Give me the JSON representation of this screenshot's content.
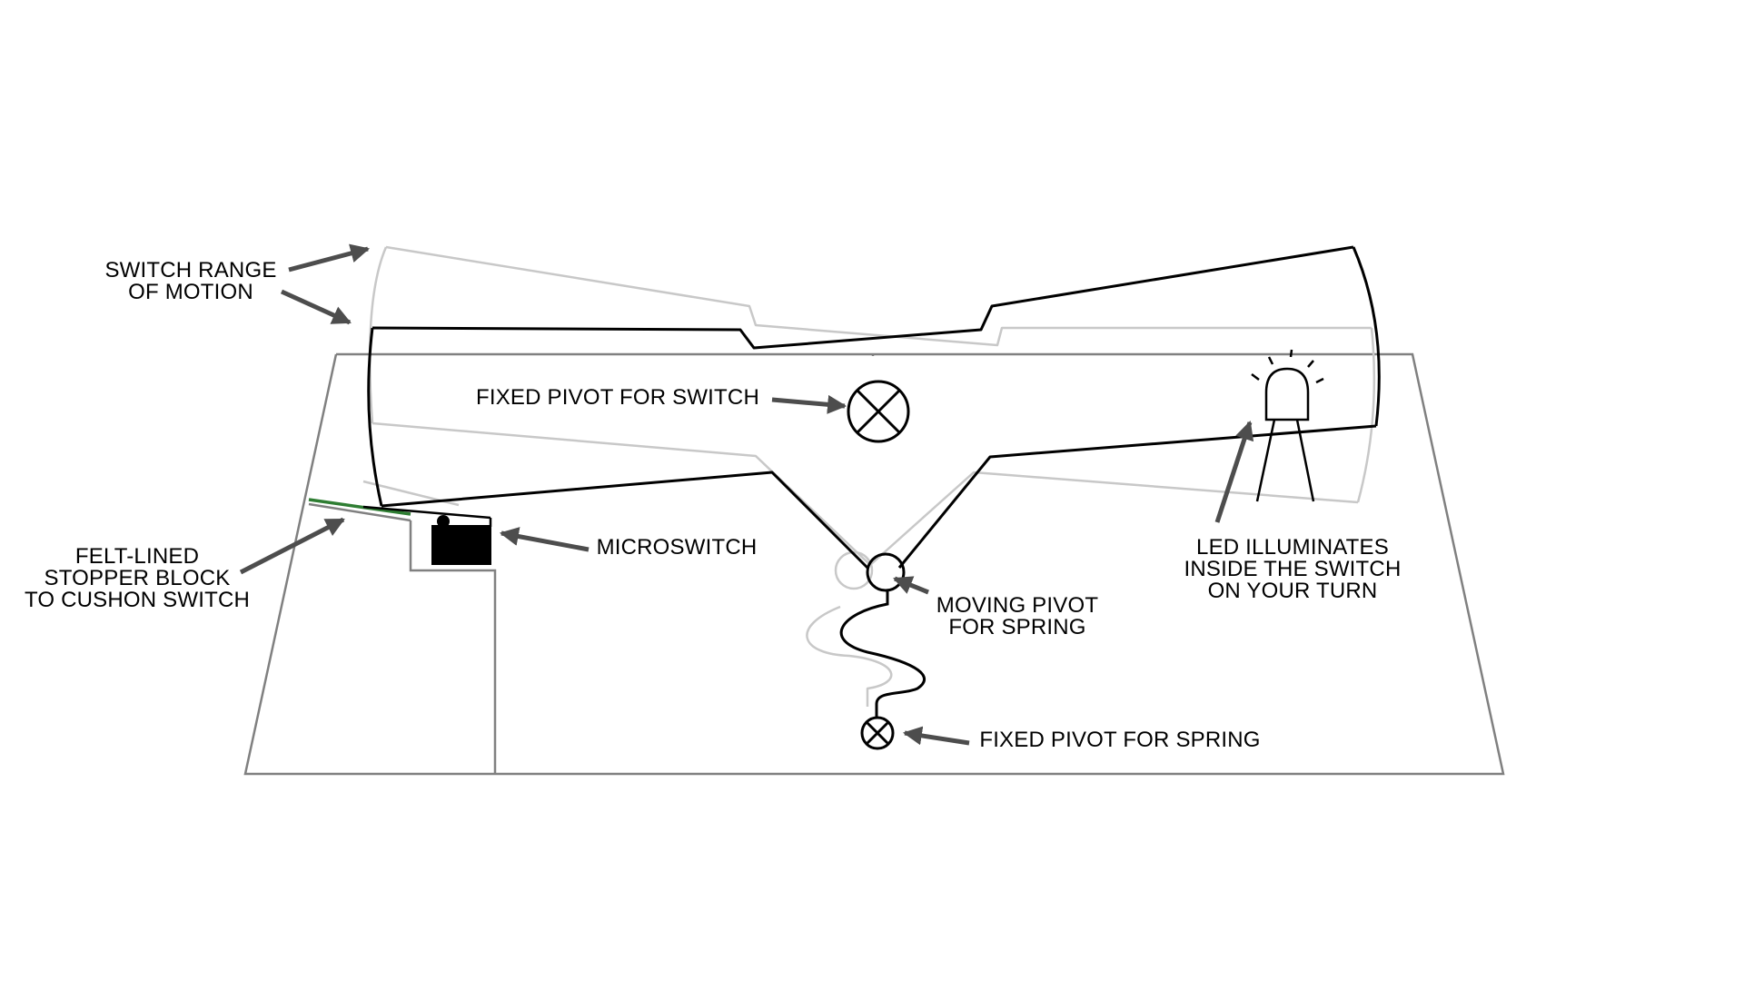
{
  "labels": {
    "range": [
      "SWITCH RANGE",
      "OF MOTION"
    ],
    "fixed_pivot_switch": "FIXED PIVOT FOR SWITCH",
    "microswitch": "MICROSWITCH",
    "felt_block": [
      "FELT-LINED",
      "STOPPER BLOCK",
      "TO CUSHON SWITCH"
    ],
    "moving_pivot": [
      "MOVING PIVOT",
      "FOR SPRING"
    ],
    "fixed_pivot_spring": "FIXED PIVOT FOR SPRING",
    "led": [
      "LED ILLUMINATES",
      "INSIDE THE SWITCH",
      "ON YOUR TURN"
    ]
  },
  "colors": {
    "outline": "#000000",
    "ghost": "#c8c8c8",
    "box": "#808080",
    "arrow": "#4d4d4d",
    "felt": "#2e7d32",
    "microswitch": "#000000"
  },
  "icons": {
    "pivot": "x-circle-icon",
    "led": "led-icon",
    "arrow": "arrow-icon"
  }
}
